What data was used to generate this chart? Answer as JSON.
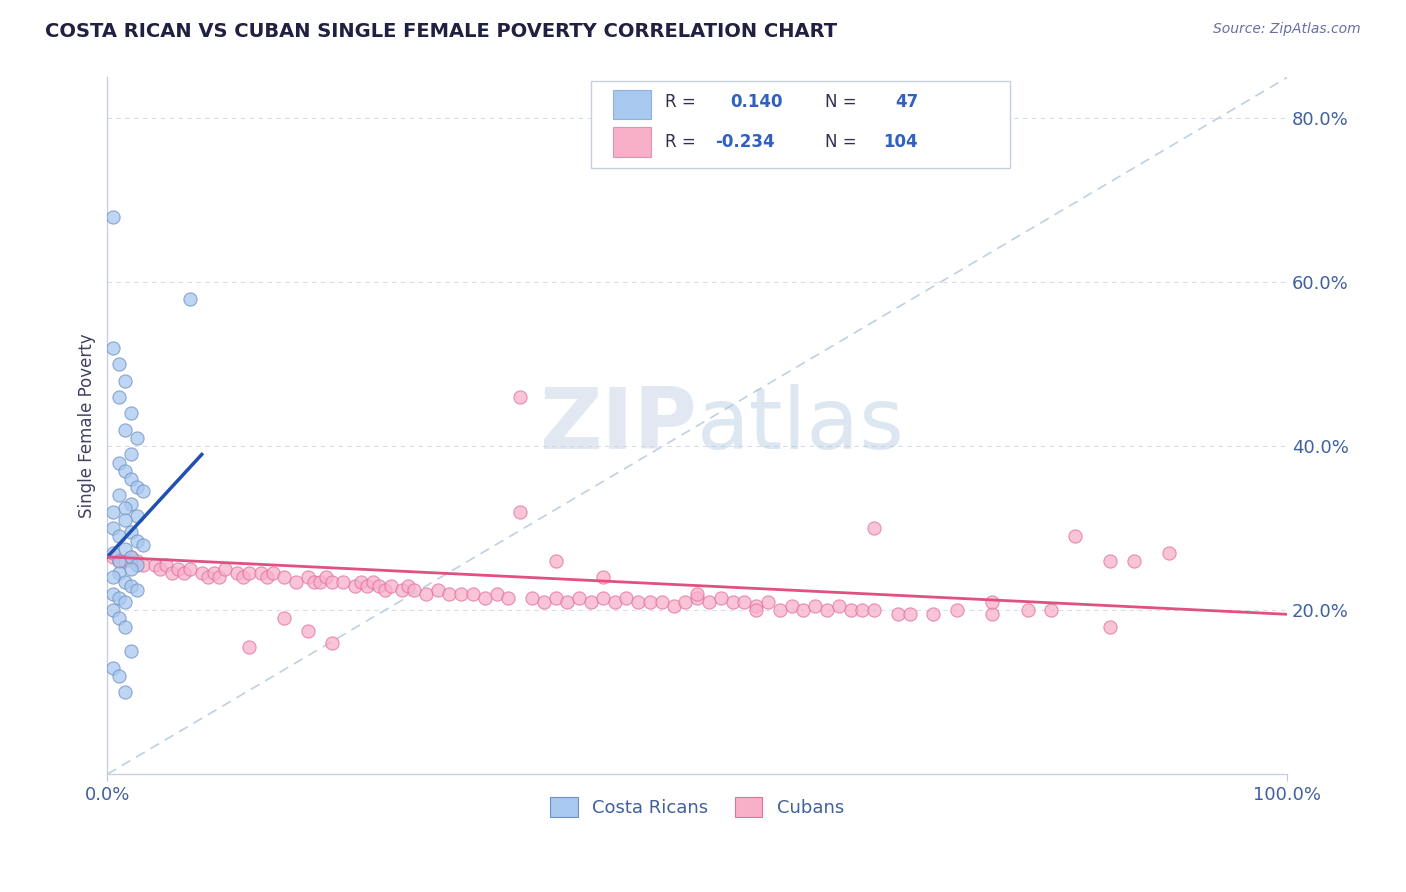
{
  "title": "COSTA RICAN VS CUBAN SINGLE FEMALE POVERTY CORRELATION CHART",
  "source": "Source: ZipAtlas.com",
  "ylabel": "Single Female Poverty",
  "watermark": "ZIPatlas",
  "xlim": [
    0.0,
    1.0
  ],
  "ylim": [
    0.0,
    0.85
  ],
  "yticks": [
    0.2,
    0.4,
    0.6,
    0.8
  ],
  "ytick_labels": [
    "20.0%",
    "40.0%",
    "60.0%",
    "80.0%"
  ],
  "blue_color": "#A8C8F0",
  "pink_color": "#F8B0C8",
  "blue_edge_color": "#7090C0",
  "pink_edge_color": "#E070A0",
  "blue_line_color": "#2050B0",
  "pink_line_color": "#E05080",
  "diagonal_color": "#C0D0E0",
  "axis_label_color": "#4060A0",
  "title_color": "#202040",
  "grid_color": "#D8DCE8",
  "legend_text_color": "#303050",
  "legend_value_color": "#3060C0",
  "blue_scatter_x": [
    0.005,
    0.07,
    0.005,
    0.01,
    0.015,
    0.01,
    0.02,
    0.015,
    0.025,
    0.02,
    0.01,
    0.015,
    0.02,
    0.025,
    0.03,
    0.01,
    0.02,
    0.015,
    0.005,
    0.025,
    0.015,
    0.005,
    0.02,
    0.01,
    0.025,
    0.03,
    0.015,
    0.005,
    0.02,
    0.01,
    0.025,
    0.02,
    0.01,
    0.005,
    0.015,
    0.02,
    0.025,
    0.005,
    0.01,
    0.015,
    0.005,
    0.01,
    0.015,
    0.02,
    0.005,
    0.01,
    0.015
  ],
  "blue_scatter_y": [
    0.68,
    0.58,
    0.52,
    0.5,
    0.48,
    0.46,
    0.44,
    0.42,
    0.41,
    0.39,
    0.38,
    0.37,
    0.36,
    0.35,
    0.345,
    0.34,
    0.33,
    0.325,
    0.32,
    0.315,
    0.31,
    0.3,
    0.295,
    0.29,
    0.285,
    0.28,
    0.275,
    0.27,
    0.265,
    0.26,
    0.255,
    0.25,
    0.245,
    0.24,
    0.235,
    0.23,
    0.225,
    0.22,
    0.215,
    0.21,
    0.2,
    0.19,
    0.18,
    0.15,
    0.13,
    0.12,
    0.1
  ],
  "pink_scatter_x": [
    0.005,
    0.01,
    0.015,
    0.02,
    0.025,
    0.03,
    0.04,
    0.045,
    0.05,
    0.055,
    0.06,
    0.065,
    0.07,
    0.08,
    0.085,
    0.09,
    0.095,
    0.1,
    0.11,
    0.115,
    0.12,
    0.13,
    0.135,
    0.14,
    0.15,
    0.16,
    0.17,
    0.175,
    0.18,
    0.185,
    0.19,
    0.2,
    0.21,
    0.215,
    0.22,
    0.225,
    0.23,
    0.235,
    0.24,
    0.25,
    0.255,
    0.26,
    0.27,
    0.28,
    0.29,
    0.3,
    0.31,
    0.32,
    0.33,
    0.34,
    0.35,
    0.36,
    0.37,
    0.38,
    0.39,
    0.4,
    0.41,
    0.42,
    0.43,
    0.44,
    0.45,
    0.46,
    0.47,
    0.48,
    0.49,
    0.5,
    0.51,
    0.52,
    0.53,
    0.54,
    0.55,
    0.56,
    0.57,
    0.58,
    0.59,
    0.6,
    0.61,
    0.62,
    0.63,
    0.64,
    0.65,
    0.67,
    0.68,
    0.7,
    0.72,
    0.75,
    0.78,
    0.8,
    0.82,
    0.85,
    0.87,
    0.9,
    0.12,
    0.15,
    0.17,
    0.19,
    0.35,
    0.38,
    0.42,
    0.5,
    0.55,
    0.65,
    0.75,
    0.85
  ],
  "pink_scatter_y": [
    0.265,
    0.26,
    0.26,
    0.265,
    0.26,
    0.255,
    0.255,
    0.25,
    0.255,
    0.245,
    0.25,
    0.245,
    0.25,
    0.245,
    0.24,
    0.245,
    0.24,
    0.25,
    0.245,
    0.24,
    0.245,
    0.245,
    0.24,
    0.245,
    0.24,
    0.235,
    0.24,
    0.235,
    0.235,
    0.24,
    0.235,
    0.235,
    0.23,
    0.235,
    0.23,
    0.235,
    0.23,
    0.225,
    0.23,
    0.225,
    0.23,
    0.225,
    0.22,
    0.225,
    0.22,
    0.22,
    0.22,
    0.215,
    0.22,
    0.215,
    0.46,
    0.215,
    0.21,
    0.215,
    0.21,
    0.215,
    0.21,
    0.215,
    0.21,
    0.215,
    0.21,
    0.21,
    0.21,
    0.205,
    0.21,
    0.215,
    0.21,
    0.215,
    0.21,
    0.21,
    0.205,
    0.21,
    0.2,
    0.205,
    0.2,
    0.205,
    0.2,
    0.205,
    0.2,
    0.2,
    0.2,
    0.195,
    0.195,
    0.195,
    0.2,
    0.195,
    0.2,
    0.2,
    0.29,
    0.26,
    0.26,
    0.27,
    0.155,
    0.19,
    0.175,
    0.16,
    0.32,
    0.26,
    0.24,
    0.22,
    0.2,
    0.3,
    0.21,
    0.18
  ]
}
